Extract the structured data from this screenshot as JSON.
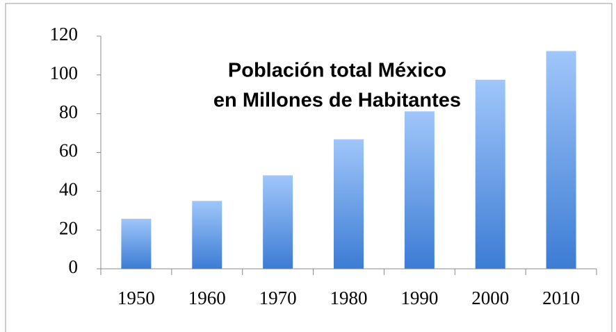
{
  "chart_data": {
    "type": "bar",
    "title": [
      "Población total México",
      "en Millones de Habitantes"
    ],
    "categories": [
      "1950",
      "1960",
      "1970",
      "1980",
      "1990",
      "2000",
      "2010"
    ],
    "values": [
      25.8,
      35,
      48.2,
      66.8,
      81.2,
      97.5,
      112.3
    ],
    "color": [
      "#a0c6fa",
      "#3c7cd4"
    ],
    "ylim": [
      0,
      120
    ],
    "yticks": [
      0,
      20,
      40,
      60,
      80,
      100,
      120
    ],
    "grid": false
  }
}
